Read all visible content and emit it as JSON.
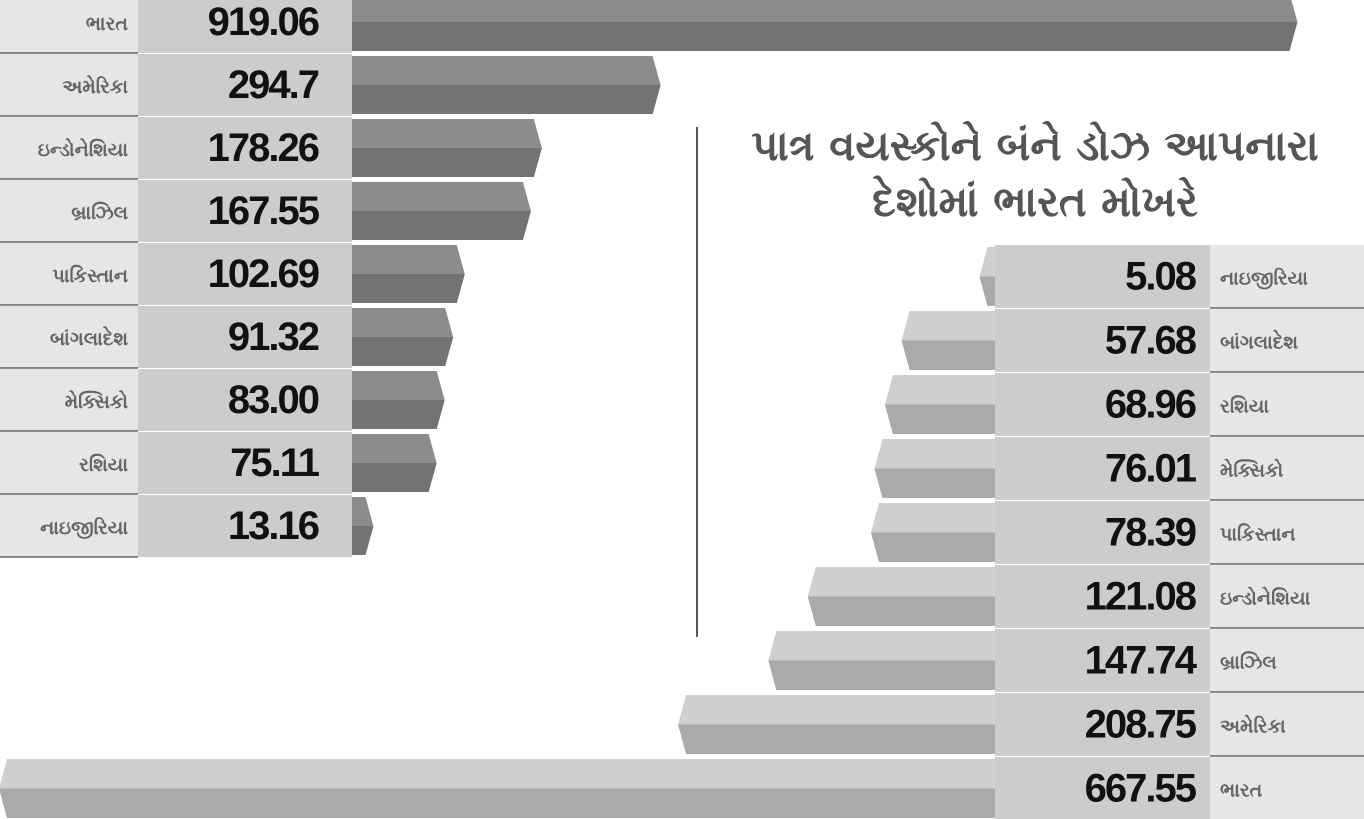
{
  "title": "પાત્ર વયસ્કોને બંને ડોઝ આપનારા દેશોમાં ભારત મોખરે",
  "chart_data": [
    {
      "type": "bar",
      "orientation": "horizontal",
      "direction": "right",
      "color": "#8c8c8c",
      "categories": [
        "ભારત",
        "અમેરિકા",
        "ઇન્ડોનેશિયા",
        "બ્રાઝિલ",
        "પાકિસ્તાન",
        "બાંગલાદેશ",
        "મેક્સિકો",
        "રશિયા",
        "નાઇજીરિયા"
      ],
      "values": [
        919.06,
        294.7,
        178.26,
        167.55,
        102.69,
        91.32,
        83.0,
        75.11,
        13.16
      ],
      "value_labels": [
        "919.06",
        "294.7",
        "178.26",
        "167.55",
        "102.69",
        "91.32",
        "83.00",
        "75.11",
        "13.16"
      ]
    },
    {
      "type": "bar",
      "orientation": "horizontal",
      "direction": "left",
      "color": "#cfcfcf",
      "categories": [
        "નાઇજીરિયા",
        "બાંગલાદેશ",
        "રશિયા",
        "મેક્સિકો",
        "પાકિસ્તાન",
        "ઇન્ડોનેશિયા",
        "બ્રાઝિલ",
        "અમેરિકા",
        "ભારત"
      ],
      "values": [
        5.08,
        57.68,
        68.96,
        76.01,
        78.39,
        121.08,
        147.74,
        208.75,
        667.55
      ],
      "value_labels": [
        "5.08",
        "57.68",
        "68.96",
        "76.01",
        "78.39",
        "121.08",
        "147.74",
        "208.75",
        "667.55"
      ]
    }
  ]
}
